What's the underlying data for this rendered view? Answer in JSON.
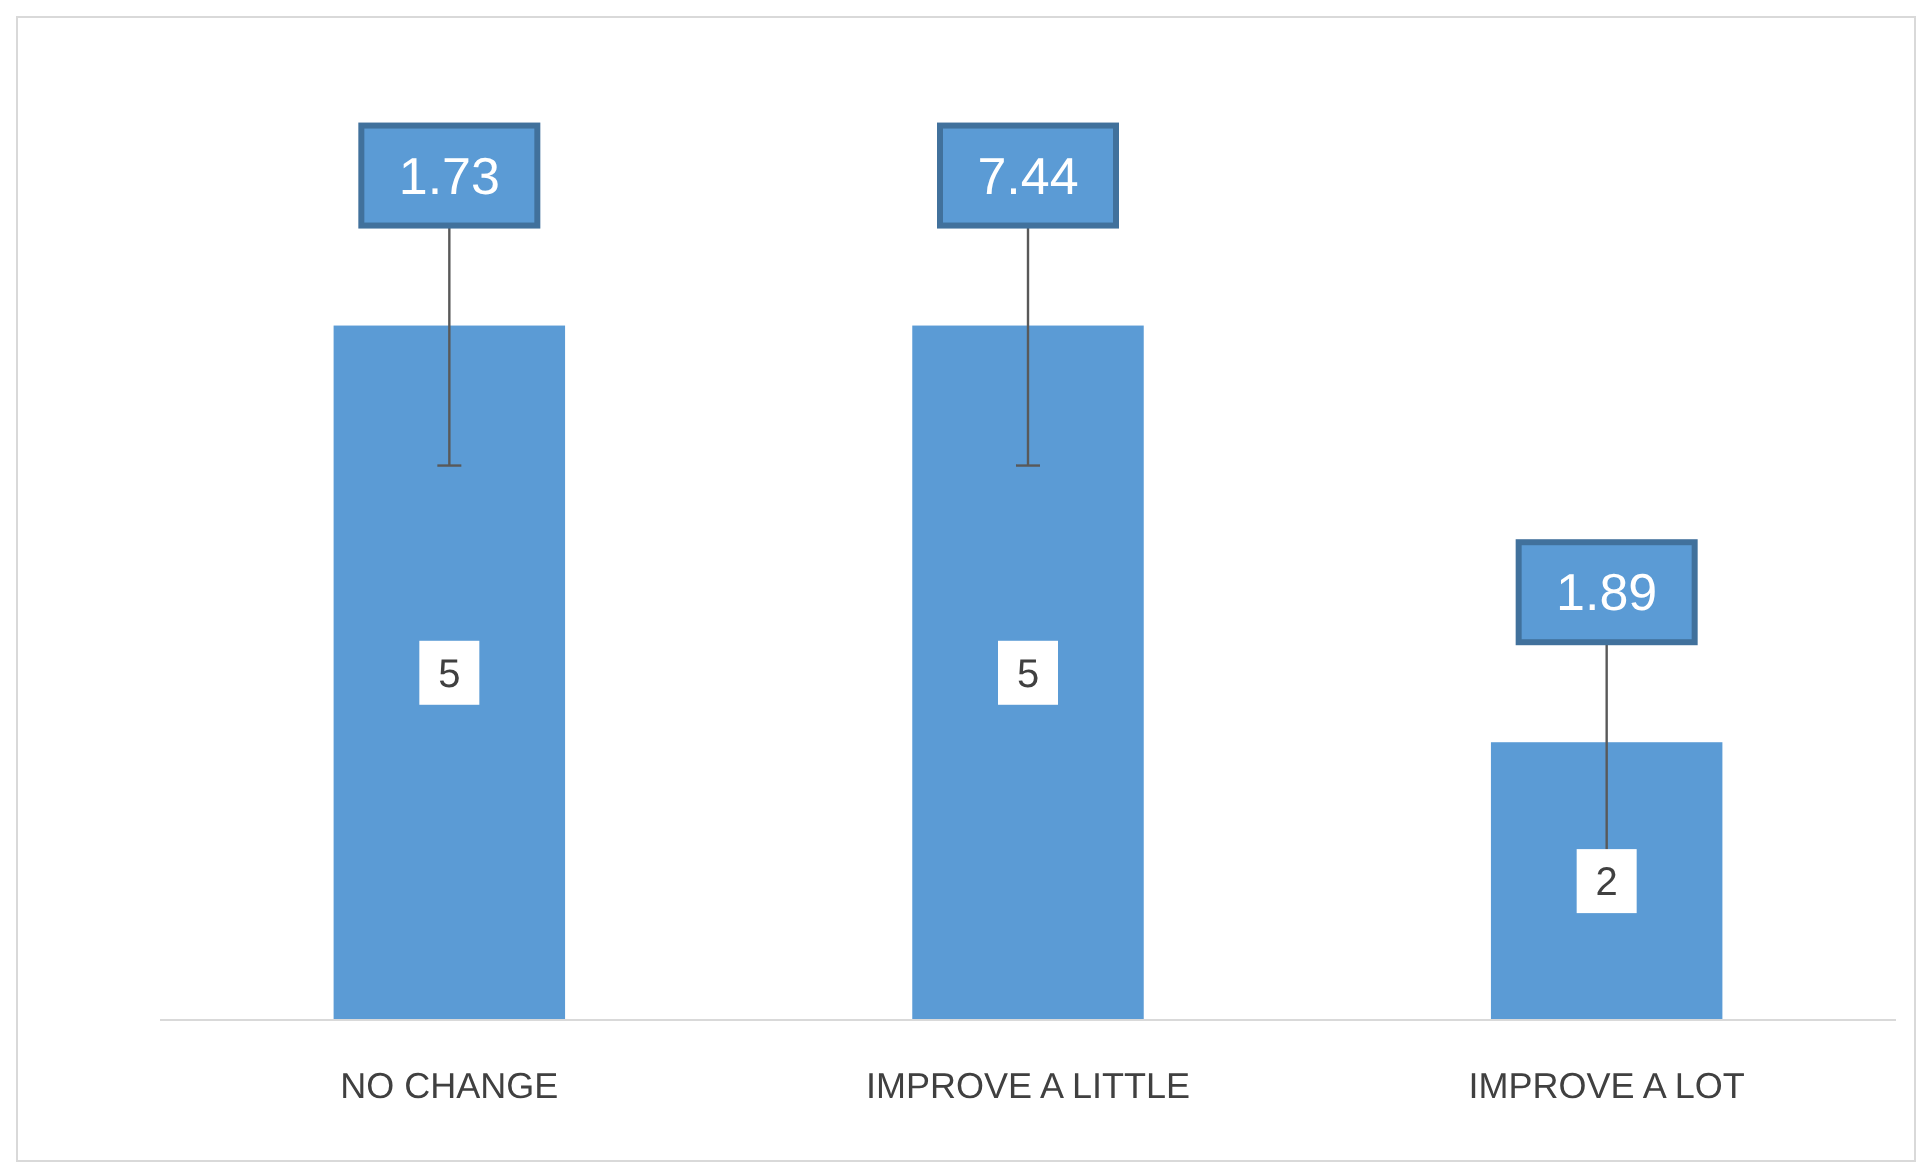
{
  "chart_data": {
    "type": "bar",
    "categories": [
      "NO CHANGE",
      "IMPROVE A LITTLE",
      "IMPROVE A LOT"
    ],
    "values": [
      5,
      5,
      2
    ],
    "color": "#5b9bd5",
    "data_labels": true,
    "ylim": [
      0,
      7.2
    ],
    "tick_labels": "x",
    "annotations": [
      "1.73",
      "7.44",
      "1.89"
    ]
  }
}
